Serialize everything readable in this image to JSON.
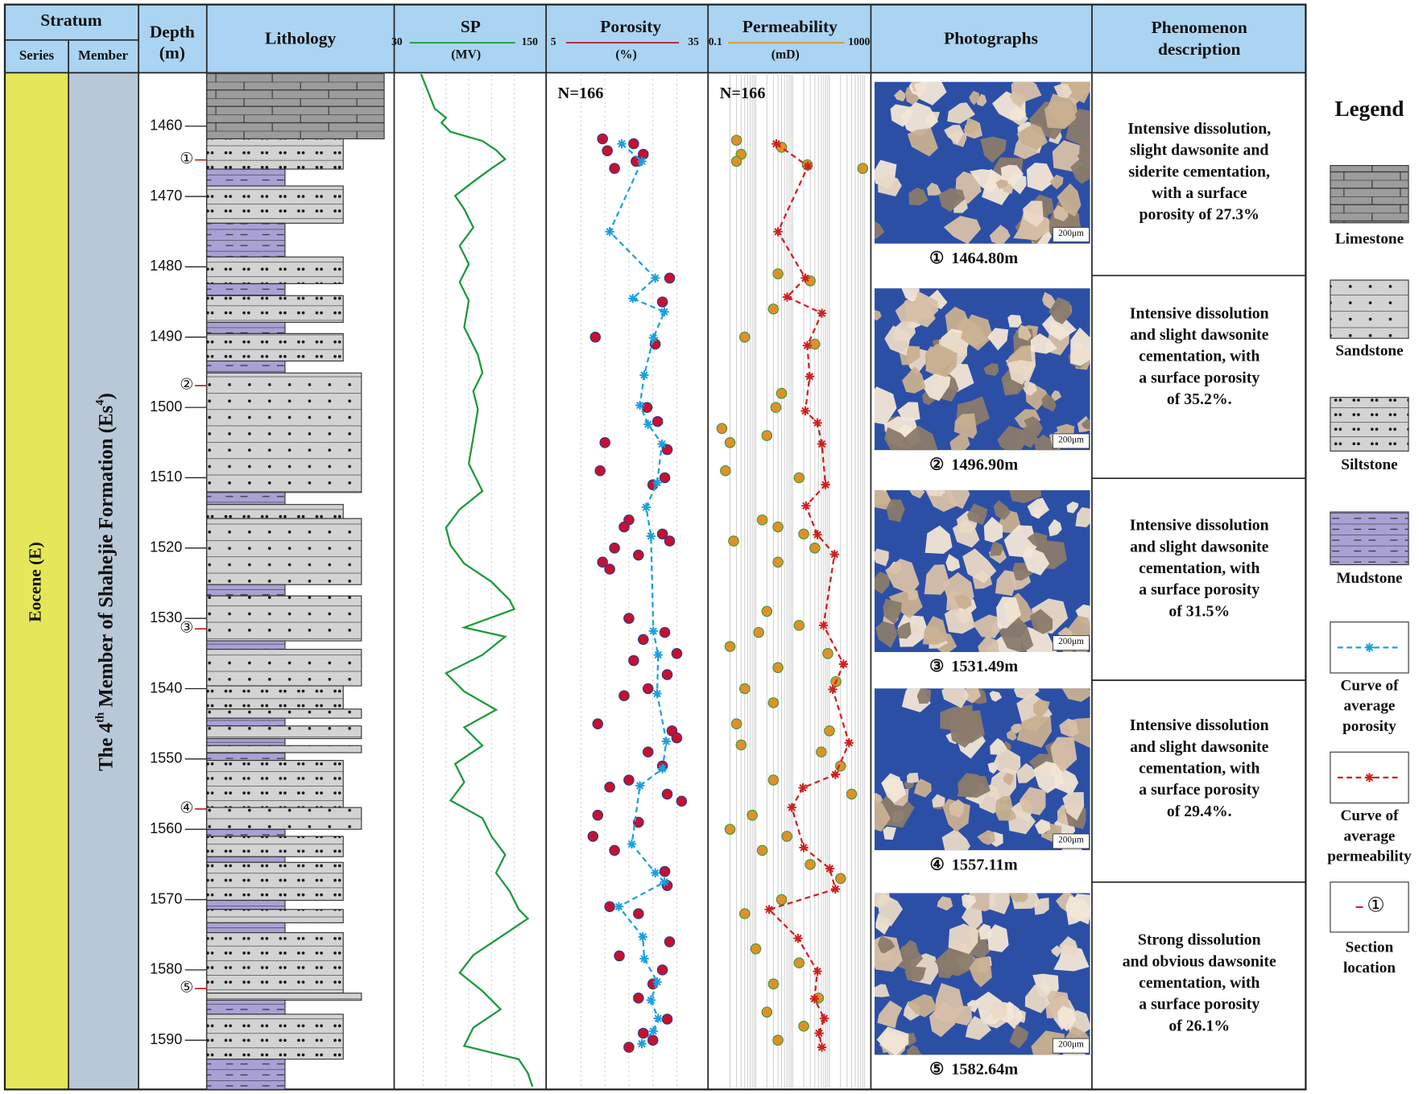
{
  "header": {
    "stratum": "Stratum",
    "series": "Series",
    "member": "Member",
    "depth": [
      "Depth",
      "(m)"
    ],
    "lithology": "Lithology",
    "photographs": "Photographs",
    "phenomenon": [
      "Phenomenon",
      "description"
    ]
  },
  "series_name": "Eocene (E)",
  "member_name": [
    "The 4",
    "th",
    " Member of Shahejie Formation (Es",
    "4",
    ")"
  ],
  "depth_axis": {
    "ylim": [
      1452.4,
      1597
    ],
    "yticks": [
      1460,
      1470,
      1480,
      1490,
      1500,
      1510,
      1520,
      1530,
      1540,
      1550,
      1560,
      1570,
      1580,
      1590
    ]
  },
  "layers": [
    {
      "top": 1452.4,
      "base": 1461.8,
      "lith": 0
    },
    {
      "top": 1461.8,
      "base": 1466.1,
      "lith": 2
    },
    {
      "top": 1466.1,
      "base": 1468.5,
      "lith": 3
    },
    {
      "top": 1468.5,
      "base": 1473.8,
      "lith": 2
    },
    {
      "top": 1473.8,
      "base": 1478.6,
      "lith": 3
    },
    {
      "top": 1478.6,
      "base": 1482.4,
      "lith": 2
    },
    {
      "top": 1482.4,
      "base": 1484.1,
      "lith": 3
    },
    {
      "top": 1484.1,
      "base": 1487.9,
      "lith": 2
    },
    {
      "top": 1487.9,
      "base": 1489.5,
      "lith": 3
    },
    {
      "top": 1489.5,
      "base": 1493.4,
      "lith": 2
    },
    {
      "top": 1493.4,
      "base": 1495.1,
      "lith": 3
    },
    {
      "top": 1495.1,
      "base": 1512.1,
      "lith": 1
    },
    {
      "top": 1512.1,
      "base": 1513.8,
      "lith": 3
    },
    {
      "top": 1513.8,
      "base": 1515.8,
      "lith": 2
    },
    {
      "top": 1515.8,
      "base": 1525.2,
      "lith": 1
    },
    {
      "top": 1525.2,
      "base": 1526.8,
      "lith": 3
    },
    {
      "top": 1526.8,
      "base": 1533.2,
      "lith": 1
    },
    {
      "top": 1533.2,
      "base": 1534.4,
      "lith": 3
    },
    {
      "top": 1534.4,
      "base": 1539.6,
      "lith": 1
    },
    {
      "top": 1539.6,
      "base": 1542.9,
      "lith": 2
    },
    {
      "top": 1542.9,
      "base": 1544.2,
      "lith": 1
    },
    {
      "top": 1544.2,
      "base": 1545.3,
      "lith": 3
    },
    {
      "top": 1545.3,
      "base": 1547.1,
      "lith": 1
    },
    {
      "top": 1547.1,
      "base": 1548.1,
      "lith": 3
    },
    {
      "top": 1548.1,
      "base": 1549.1,
      "lith": 1
    },
    {
      "top": 1549.1,
      "base": 1550.2,
      "lith": 3
    },
    {
      "top": 1550.2,
      "base": 1556.9,
      "lith": 2
    },
    {
      "top": 1556.9,
      "base": 1560.0,
      "lith": 1
    },
    {
      "top": 1560.0,
      "base": 1561.0,
      "lith": 3
    },
    {
      "top": 1561.0,
      "base": 1563.9,
      "lith": 2
    },
    {
      "top": 1563.9,
      "base": 1564.7,
      "lith": 3
    },
    {
      "top": 1564.7,
      "base": 1570.1,
      "lith": 2
    },
    {
      "top": 1570.1,
      "base": 1571.4,
      "lith": 3
    },
    {
      "top": 1571.4,
      "base": 1573.3,
      "lith": 2
    },
    {
      "top": 1573.3,
      "base": 1574.7,
      "lith": 3
    },
    {
      "top": 1574.7,
      "base": 1583.3,
      "lith": 2
    },
    {
      "top": 1583.3,
      "base": 1584.3,
      "lith": 1
    },
    {
      "top": 1584.3,
      "base": 1586.3,
      "lith": 3
    },
    {
      "top": 1586.3,
      "base": 1592.7,
      "lith": 2
    },
    {
      "top": 1592.7,
      "base": 1597,
      "lith": 3
    }
  ],
  "sp": {
    "name": "SP",
    "unit": "(MV)",
    "color": "#1a9a3a",
    "xlim": [
      30,
      150
    ],
    "xgrid": [
      50,
      70,
      90,
      110,
      130
    ],
    "depth": [
      1452.6,
      1455.0,
      1457.5,
      1458.8,
      1459.5,
      1460.8,
      1462.1,
      1463.4,
      1464.7,
      1466.0,
      1467.9,
      1469.9,
      1471.8,
      1474.4,
      1477.0,
      1479.6,
      1482.2,
      1484.8,
      1488.6,
      1492.5,
      1495.1,
      1497.7,
      1500.3,
      1504.2,
      1508.0,
      1511.9,
      1514.5,
      1517.1,
      1519.6,
      1522.2,
      1524.8,
      1527.4,
      1528.7,
      1531.3,
      1532.6,
      1535.2,
      1537.8,
      1540.4,
      1543.0,
      1545.5,
      1548.1,
      1550.7,
      1553.3,
      1555.9,
      1558.4,
      1561.0,
      1563.6,
      1566.2,
      1568.8,
      1571.4,
      1572.7,
      1575.3,
      1577.9,
      1580.4,
      1583.0,
      1585.6,
      1588.2,
      1590.8,
      1592.7,
      1594.7,
      1596.6
    ],
    "values": [
      48,
      54,
      60,
      70,
      66,
      74,
      102,
      114,
      122,
      110,
      94,
      78,
      86,
      94,
      82,
      90,
      82,
      90,
      86,
      98,
      102,
      94,
      98,
      94,
      90,
      102,
      82,
      70,
      74,
      86,
      110,
      126,
      130,
      86,
      122,
      102,
      70,
      86,
      114,
      86,
      102,
      78,
      86,
      74,
      102,
      110,
      122,
      114,
      126,
      134,
      142,
      118,
      94,
      82,
      102,
      118,
      94,
      86,
      134,
      142,
      146
    ]
  },
  "porosity": {
    "name": "Porosity",
    "unit": "(%)",
    "color": "#c8102e",
    "xlim": [
      5,
      35
    ],
    "xgrid": [
      10,
      15,
      20,
      25,
      30
    ],
    "n_label": "N=166",
    "points": {
      "depth": [
        1461.8,
        1462.5,
        1463.5,
        1464,
        1465,
        1466,
        1481.6,
        1485,
        1490,
        1491,
        1500,
        1502,
        1505,
        1506,
        1509,
        1510,
        1511,
        1516,
        1517,
        1518,
        1519,
        1520,
        1521,
        1522,
        1523,
        1530,
        1532,
        1533,
        1535,
        1536,
        1538,
        1540,
        1541,
        1545,
        1546,
        1547,
        1549,
        1551,
        1553,
        1554,
        1555,
        1556,
        1558,
        1559,
        1561,
        1563,
        1566,
        1568,
        1571,
        1572,
        1576,
        1578,
        1580,
        1582,
        1584,
        1587,
        1589,
        1590,
        1591
      ],
      "values": [
        14.5,
        21,
        15.5,
        23,
        21.5,
        17,
        28.5,
        27,
        13,
        25.5,
        23.8,
        26,
        15,
        28,
        14,
        27.5,
        25,
        20,
        19,
        27,
        28.5,
        17,
        22,
        14.5,
        16,
        20,
        27.5,
        23,
        30,
        21,
        28,
        24,
        19,
        13.5,
        29,
        30,
        24,
        27,
        20,
        16,
        28,
        31,
        13.5,
        22,
        12.5,
        17,
        27.5,
        28,
        16,
        22,
        28.5,
        18,
        27,
        25,
        22,
        28,
        23,
        25,
        20
      ]
    },
    "average": {
      "color": "#1aa0e0",
      "depth": [
        1462.5,
        1465.0,
        1475.0,
        1481.6,
        1484.5,
        1486.4,
        1490.1,
        1495.4,
        1499.7,
        1502.4,
        1505.2,
        1510.7,
        1514.2,
        1518.3,
        1531.8,
        1535.2,
        1540.7,
        1547.5,
        1551.4,
        1553.8,
        1562.1,
        1566.2,
        1567.5,
        1571.0,
        1575.3,
        1578.4,
        1581.7,
        1584.3,
        1586.9,
        1588.7,
        1590.5
      ],
      "values": [
        18.5,
        22.7,
        16.0,
        25.5,
        20.8,
        27.4,
        25.1,
        23.2,
        22.3,
        24.0,
        26.9,
        25.9,
        23.6,
        24.6,
        25.1,
        26.1,
        25.9,
        27.8,
        27.0,
        22.3,
        20.6,
        25.5,
        27.4,
        17.9,
        22.9,
        23.2,
        25.9,
        24.6,
        26.1,
        25.1,
        22.7
      ]
    }
  },
  "permeability": {
    "name": "Permeability",
    "unit": "(mD)",
    "color": "#e0902a",
    "xlim": [
      0.1,
      1000
    ],
    "log": true,
    "n_label": "N=166",
    "xgrid": [
      0.2,
      0.3,
      0.4,
      0.5,
      0.6,
      0.7,
      0.8,
      0.9,
      1,
      2,
      3,
      4,
      5,
      6,
      7,
      8,
      9,
      10,
      20,
      30,
      40,
      50,
      60,
      70,
      80,
      90,
      100,
      200,
      300,
      400,
      500,
      600,
      700,
      800,
      900
    ],
    "points": {
      "depth": [
        1462,
        1463,
        1464,
        1465,
        1465.5,
        1466,
        1481,
        1482,
        1486,
        1490,
        1491,
        1498,
        1500,
        1503,
        1504,
        1505,
        1509,
        1510,
        1516,
        1517,
        1518,
        1519,
        1520,
        1522,
        1529,
        1531,
        1532,
        1534,
        1535,
        1537,
        1539,
        1540,
        1542,
        1545,
        1546,
        1548,
        1549,
        1551,
        1553,
        1555,
        1558,
        1560,
        1561,
        1563,
        1565,
        1567,
        1570,
        1572,
        1577,
        1579,
        1582,
        1584,
        1586,
        1588,
        1590
      ],
      "values": [
        0.3,
        5,
        0.4,
        0.3,
        25,
        800,
        4,
        30,
        3,
        0.5,
        40,
        5,
        3.5,
        0.12,
        2,
        0.2,
        0.15,
        15,
        1.5,
        4,
        20,
        0.25,
        40,
        4,
        2,
        15,
        1.2,
        0.2,
        90,
        4,
        150,
        0.5,
        3,
        0.3,
        100,
        0.4,
        60,
        200,
        3,
        400,
        0.8,
        0.2,
        7,
        1.5,
        30,
        200,
        5,
        0.5,
        1,
        15,
        3,
        50,
        2,
        20,
        4
      ]
    },
    "average": {
      "color": "#d02020",
      "depth": [
        1462.5,
        1465.7,
        1475.0,
        1481.6,
        1484.3,
        1486.6,
        1491.2,
        1495.6,
        1500.5,
        1502.2,
        1505.2,
        1511.0,
        1514.0,
        1518.1,
        1520.9,
        1531.0,
        1536.5,
        1540.1,
        1547.7,
        1552.2,
        1554.1,
        1556.9,
        1562.6,
        1565.6,
        1568.5,
        1571.4,
        1575.5,
        1580.2,
        1584.1,
        1586.9,
        1589.0,
        1591.0
      ],
      "values": [
        3.6,
        26,
        4.0,
        22,
        7.1,
        62,
        25,
        29,
        22,
        47,
        62,
        78,
        23,
        47,
        137,
        69,
        240,
        123,
        339,
        145,
        19,
        9.5,
        20,
        102,
        145,
        2.3,
        14,
        47,
        39,
        72,
        52,
        62
      ]
    }
  },
  "sections": [
    {
      "mark": "①",
      "depth": 1464.8,
      "label": "1464.80m",
      "scale": "200μm",
      "description": [
        "Intensive dissolution,",
        "slight dawsonite and",
        "siderite cementation,",
        "with a surface",
        "porosity of 27.3%"
      ]
    },
    {
      "mark": "②",
      "depth": 1496.9,
      "label": "1496.90m",
      "scale": "200μm",
      "description": [
        "Intensive dissolution",
        "and slight dawsonite",
        "cementation, with",
        "a surface porosity",
        "of 35.2%."
      ]
    },
    {
      "mark": "③",
      "depth": 1531.49,
      "label": "1531.49m",
      "scale": "200μm",
      "description": [
        "Intensive dissolution",
        "and slight dawsonite",
        "cementation, with",
        "a surface porosity",
        "of 31.5%"
      ]
    },
    {
      "mark": "④",
      "depth": 1557.11,
      "label": "1557.11m",
      "scale": "200μm",
      "description": [
        "Intensive dissolution",
        "and slight dawsonite",
        "cementation, with",
        "a surface porosity",
        "of 29.4%."
      ]
    },
    {
      "mark": "⑤",
      "depth": 1582.64,
      "label": "1582.64m",
      "scale": "200μm",
      "description": [
        "Strong dissolution",
        "and obvious dawsonite",
        "cementation, with",
        "a surface porosity",
        "of 26.1%"
      ]
    }
  ],
  "legend": {
    "title": "Legend",
    "items": [
      {
        "lines": [
          "Limestone"
        ]
      },
      {
        "lines": [
          "Sandstone"
        ]
      },
      {
        "lines": [
          "Siltstone"
        ]
      },
      {
        "lines": [
          "Mudstone"
        ]
      },
      {
        "lines": [
          "Curve of",
          "average",
          "porosity"
        ]
      },
      {
        "lines": [
          "Curve of",
          "average",
          "permeability"
        ]
      },
      {
        "lines": [
          "Section",
          "location"
        ],
        "symbol": "①"
      }
    ]
  }
}
